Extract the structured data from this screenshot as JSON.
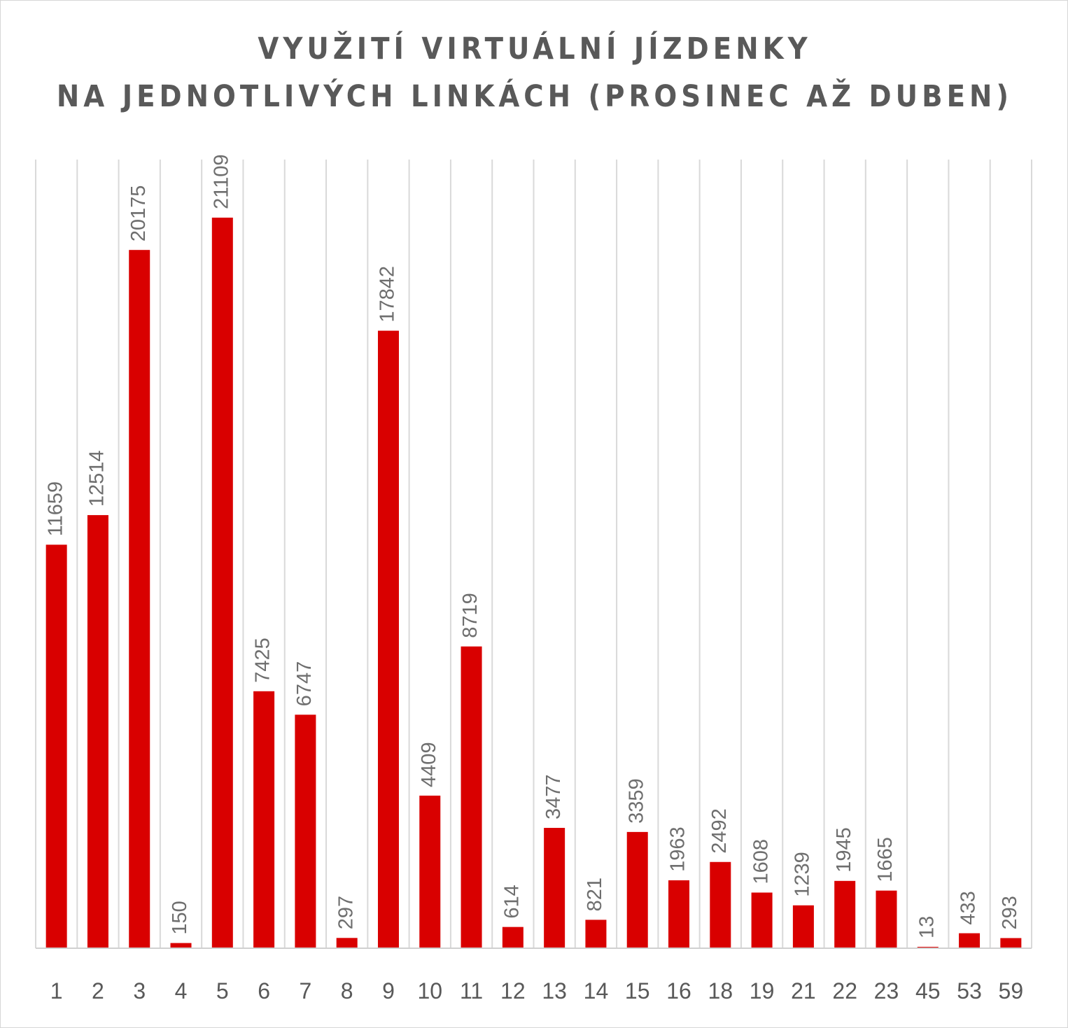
{
  "chart_data": {
    "type": "bar",
    "title_lines": [
      "VYUŽITÍ VIRTUÁLNÍ JÍZDENKY",
      "NA JEDNOTLIVÝCH LINKÁCH (PROSINEC AŽ DUBEN)"
    ],
    "categories": [
      "1",
      "2",
      "3",
      "4",
      "5",
      "6",
      "7",
      "8",
      "9",
      "10",
      "11",
      "12",
      "13",
      "14",
      "15",
      "16",
      "18",
      "19",
      "21",
      "22",
      "23",
      "45",
      "53",
      "59"
    ],
    "values": [
      11659,
      12514,
      20175,
      150,
      21109,
      7425,
      6747,
      297,
      17842,
      4409,
      8719,
      614,
      3477,
      821,
      3359,
      1963,
      2492,
      1608,
      1239,
      1945,
      1665,
      13,
      433,
      293
    ],
    "data_labels": [
      "11659",
      "12514",
      "20175",
      "150",
      "21109",
      "7425",
      "6747",
      "297",
      "17842",
      "4409",
      "8719",
      "614",
      "3477",
      "821",
      "3359",
      "1963",
      "2492",
      "1608",
      "1239",
      "1945",
      "1665",
      "13",
      "433",
      "293"
    ],
    "ylim": [
      0,
      22500
    ],
    "bar_color": "#d90000",
    "gridlines": "vertical",
    "legend": "none"
  }
}
